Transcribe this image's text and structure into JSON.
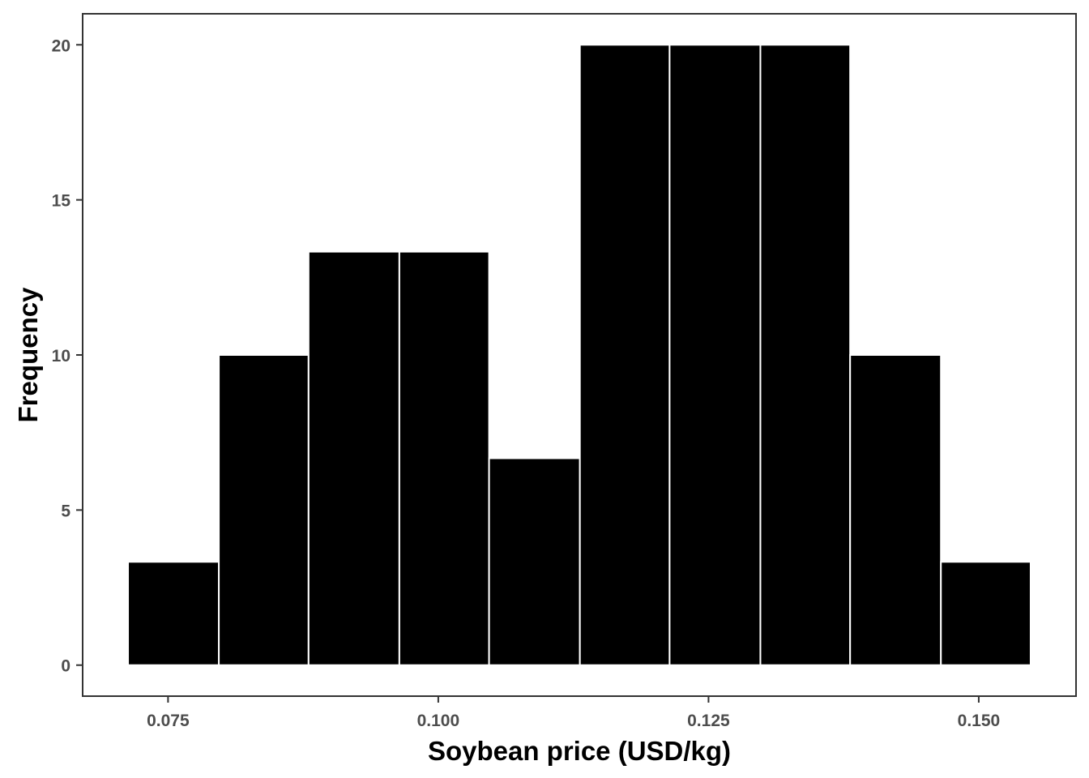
{
  "chart_data": {
    "type": "bar",
    "title": "",
    "xlabel": "Soybean price (USD/kg)",
    "ylabel": "Frequency",
    "bins": [
      {
        "x0": 0.0713,
        "x1": 0.0797,
        "value": 3.33
      },
      {
        "x0": 0.0797,
        "x1": 0.088,
        "value": 10.0
      },
      {
        "x0": 0.088,
        "x1": 0.0964,
        "value": 13.33
      },
      {
        "x0": 0.0964,
        "x1": 0.1047,
        "value": 13.33
      },
      {
        "x0": 0.1047,
        "x1": 0.1131,
        "value": 6.67
      },
      {
        "x0": 0.1131,
        "x1": 0.1214,
        "value": 20.0
      },
      {
        "x0": 0.1214,
        "x1": 0.1298,
        "value": 20.0
      },
      {
        "x0": 0.1298,
        "x1": 0.1381,
        "value": 20.0
      },
      {
        "x0": 0.1381,
        "x1": 0.1465,
        "value": 10.0
      },
      {
        "x0": 0.1465,
        "x1": 0.1548,
        "value": 3.33
      }
    ],
    "x_ticks": [
      {
        "value": 0.075,
        "label": "0.075"
      },
      {
        "value": 0.1,
        "label": "0.100"
      },
      {
        "value": 0.125,
        "label": "0.125"
      },
      {
        "value": 0.15,
        "label": "0.150"
      }
    ],
    "y_ticks": [
      {
        "value": 0,
        "label": "0"
      },
      {
        "value": 5,
        "label": "5"
      },
      {
        "value": 10,
        "label": "10"
      },
      {
        "value": 15,
        "label": "15"
      },
      {
        "value": 20,
        "label": "20"
      }
    ],
    "xlim": [
      0.0671,
      0.159
    ],
    "ylim": [
      -1,
      21
    ],
    "grid": false,
    "legend": "none",
    "colors": {
      "bar_fill": "#000000",
      "bar_edge": "#ffffff",
      "panel_border": "#333333",
      "tick_text": "#4d4d4d"
    }
  }
}
